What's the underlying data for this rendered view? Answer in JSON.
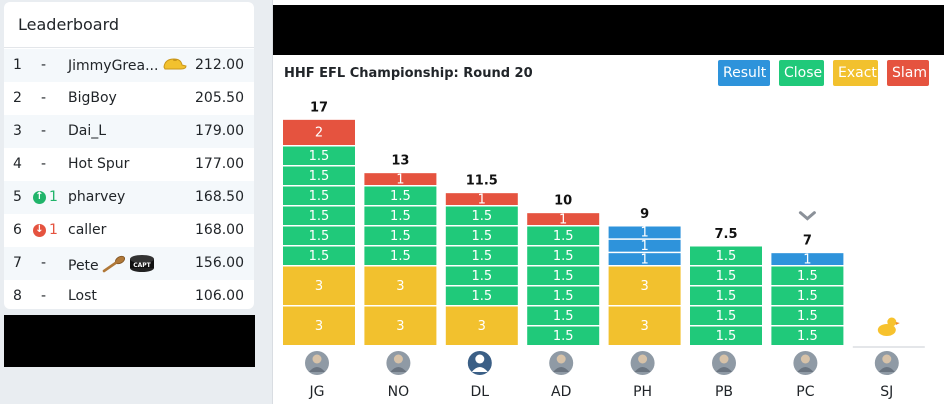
{
  "leaderboard": {
    "title": "Leaderboard",
    "rows": [
      {
        "rank": "1",
        "move": "-",
        "move_dir": "none",
        "name": "JimmyGrea...",
        "badges": [
          "cap-icon"
        ],
        "score": "212.00"
      },
      {
        "rank": "2",
        "move": "-",
        "move_dir": "none",
        "name": "BigBoy",
        "badges": [],
        "score": "205.50"
      },
      {
        "rank": "3",
        "move": "-",
        "move_dir": "none",
        "name": "Dai_L",
        "badges": [],
        "score": "179.00"
      },
      {
        "rank": "4",
        "move": "-",
        "move_dir": "none",
        "name": "Hot Spur",
        "badges": [],
        "score": "177.00"
      },
      {
        "rank": "5",
        "move": "1",
        "move_dir": "up",
        "name": "pharvey",
        "badges": [],
        "score": "168.50"
      },
      {
        "rank": "6",
        "move": "1",
        "move_dir": "down",
        "name": "caller",
        "badges": [],
        "score": "168.00"
      },
      {
        "rank": "7",
        "move": "-",
        "move_dir": "none",
        "name": "Pete",
        "badges": [
          "wooden-spoon-icon",
          "captain-armband-icon"
        ],
        "score": "156.00"
      },
      {
        "rank": "8",
        "move": "-",
        "move_dir": "none",
        "name": "Lost",
        "badges": [],
        "score": "106.00"
      }
    ],
    "captain_badge_text": "CAPT"
  },
  "round": {
    "title": "HHF EFL Championship: Round 20",
    "filters": [
      {
        "key": "result",
        "label": "Result",
        "color": "#2e93db"
      },
      {
        "key": "close",
        "label": "Close",
        "color": "#20c97a"
      },
      {
        "key": "exact",
        "label": "Exact",
        "color": "#f2c12e"
      },
      {
        "key": "slam",
        "label": "Slam",
        "color": "#e5533f"
      }
    ]
  },
  "chart_data": {
    "type": "bar",
    "stacked": true,
    "segment_colors": {
      "slam": "#e5533f",
      "close": "#20c97a",
      "result": "#2e93db",
      "exact": "#f2c12e"
    },
    "categories": [
      "JG",
      "NO",
      "DL",
      "AD",
      "PH",
      "PB",
      "PC",
      "SJ"
    ],
    "totals": [
      "17",
      "13",
      "11.5",
      "10",
      "9",
      "7.5",
      "7",
      ""
    ],
    "stacks": [
      [
        {
          "type": "exact",
          "value": 3
        },
        {
          "type": "exact",
          "value": 3
        },
        {
          "type": "close",
          "value": 1.5
        },
        {
          "type": "close",
          "value": 1.5
        },
        {
          "type": "close",
          "value": 1.5
        },
        {
          "type": "close",
          "value": 1.5
        },
        {
          "type": "close",
          "value": 1.5
        },
        {
          "type": "close",
          "value": 1.5
        },
        {
          "type": "slam",
          "value": 2
        }
      ],
      [
        {
          "type": "exact",
          "value": 3
        },
        {
          "type": "exact",
          "value": 3
        },
        {
          "type": "close",
          "value": 1.5
        },
        {
          "type": "close",
          "value": 1.5
        },
        {
          "type": "close",
          "value": 1.5
        },
        {
          "type": "close",
          "value": 1.5
        },
        {
          "type": "slam",
          "value": 1
        }
      ],
      [
        {
          "type": "exact",
          "value": 3
        },
        {
          "type": "close",
          "value": 1.5
        },
        {
          "type": "close",
          "value": 1.5
        },
        {
          "type": "close",
          "value": 1.5
        },
        {
          "type": "close",
          "value": 1.5
        },
        {
          "type": "close",
          "value": 1.5
        },
        {
          "type": "slam",
          "value": 1
        }
      ],
      [
        {
          "type": "close",
          "value": 1.5
        },
        {
          "type": "close",
          "value": 1.5
        },
        {
          "type": "close",
          "value": 1.5
        },
        {
          "type": "close",
          "value": 1.5
        },
        {
          "type": "close",
          "value": 1.5
        },
        {
          "type": "close",
          "value": 1.5
        },
        {
          "type": "slam",
          "value": 1
        }
      ],
      [
        {
          "type": "exact",
          "value": 3
        },
        {
          "type": "exact",
          "value": 3
        },
        {
          "type": "result",
          "value": 1
        },
        {
          "type": "result",
          "value": 1
        },
        {
          "type": "result",
          "value": 1
        }
      ],
      [
        {
          "type": "close",
          "value": 1.5
        },
        {
          "type": "close",
          "value": 1.5
        },
        {
          "type": "close",
          "value": 1.5
        },
        {
          "type": "close",
          "value": 1.5
        },
        {
          "type": "close",
          "value": 1.5
        }
      ],
      [
        {
          "type": "close",
          "value": 1.5
        },
        {
          "type": "close",
          "value": 1.5
        },
        {
          "type": "close",
          "value": 1.5
        },
        {
          "type": "close",
          "value": 1.5
        },
        {
          "type": "result",
          "value": 1
        }
      ],
      []
    ],
    "markers": {
      "PC": "chevron-down-icon",
      "SJ": "rubber-duck-icon"
    }
  }
}
